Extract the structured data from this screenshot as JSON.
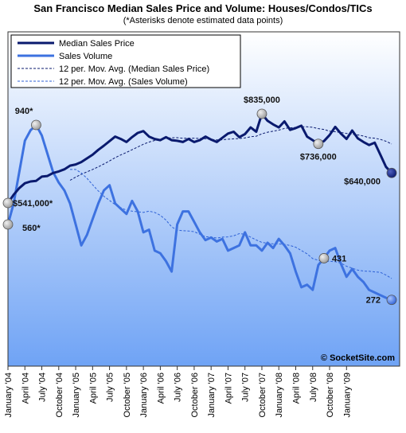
{
  "title": "San Francisco Median Sales Price and Volume: Houses/Condos/TICs",
  "subtitle": "(*Asterisks denote estimated data points)",
  "copyright": "© SocketSite.com",
  "colors": {
    "price": "#0a1a6e",
    "volume": "#3d72e0",
    "marker": "#c0c0c0",
    "bg_top": "#ffffff",
    "bg_bottom": "#6fa3f5"
  },
  "chart_data": {
    "type": "line",
    "x_tick_labels": [
      "January '04",
      "April '04",
      "July '04",
      "October '04",
      "January '05",
      "April '05",
      "July '05",
      "October '05",
      "January '06",
      "April '06",
      "July '06",
      "October '06",
      "January '07",
      "April '07",
      "July '07",
      "October '07",
      "January '08",
      "April '08",
      "July '08",
      "October '08",
      "January '09"
    ],
    "legend": {
      "placement": "top-left",
      "entries": [
        "Median Sales Price",
        "Sales Volume",
        "12 per. Mov. Avg. (Median Sales Price)",
        "12 per. Mov. Avg. (Sales Volume)"
      ]
    },
    "grid": false,
    "series": [
      {
        "name": "Median Sales Price",
        "unit": "USD",
        "values": [
          541000,
          568000,
          590000,
          606000,
          612000,
          614000,
          628000,
          630000,
          640000,
          645000,
          652000,
          664000,
          668000,
          676000,
          688000,
          700000,
          716000,
          730000,
          745000,
          760000,
          752000,
          742000,
          758000,
          772000,
          778000,
          760000,
          752000,
          748000,
          758000,
          748000,
          746000,
          742000,
          752000,
          742000,
          748000,
          760000,
          750000,
          742000,
          756000,
          770000,
          776000,
          758000,
          768000,
          790000,
          776000,
          835000,
          812000,
          800000,
          790000,
          810000,
          782000,
          788000,
          796000,
          760000,
          748000,
          736000,
          745000,
          765000,
          792000,
          770000,
          752000,
          780000,
          754000,
          742000,
          732000,
          740000,
          700000,
          660000,
          640000
        ]
      },
      {
        "name": "Sales Volume",
        "values": [
          560,
          640,
          760,
          880,
          920,
          940,
          900,
          830,
          760,
          720,
          690,
          640,
          560,
          480,
          520,
          580,
          640,
          690,
          710,
          640,
          620,
          600,
          650,
          610,
          530,
          540,
          460,
          450,
          420,
          380,
          560,
          610,
          610,
          570,
          530,
          500,
          510,
          495,
          505,
          460,
          470,
          480,
          530,
          480,
          480,
          460,
          490,
          470,
          505,
          480,
          450,
          380,
          320,
          330,
          310,
          405,
          431,
          460,
          470,
          410,
          360,
          390,
          360,
          340,
          310,
          300,
          290,
          280,
          272
        ]
      }
    ],
    "annotations": [
      {
        "text": "$541,000*",
        "series": "Median Sales Price",
        "index": 0
      },
      {
        "text": "560*",
        "series": "Sales Volume",
        "index": 0
      },
      {
        "text": "940*",
        "series": "Sales Volume",
        "index": 5
      },
      {
        "text": "$835,000",
        "series": "Median Sales Price",
        "index": 45
      },
      {
        "text": "$736,000",
        "series": "Median Sales Price",
        "index": 55
      },
      {
        "text": "431",
        "series": "Sales Volume",
        "index": 56
      },
      {
        "text": "$640,000",
        "series": "Median Sales Price",
        "index": 68
      },
      {
        "text": "272",
        "series": "Sales Volume",
        "index": 68
      }
    ]
  }
}
